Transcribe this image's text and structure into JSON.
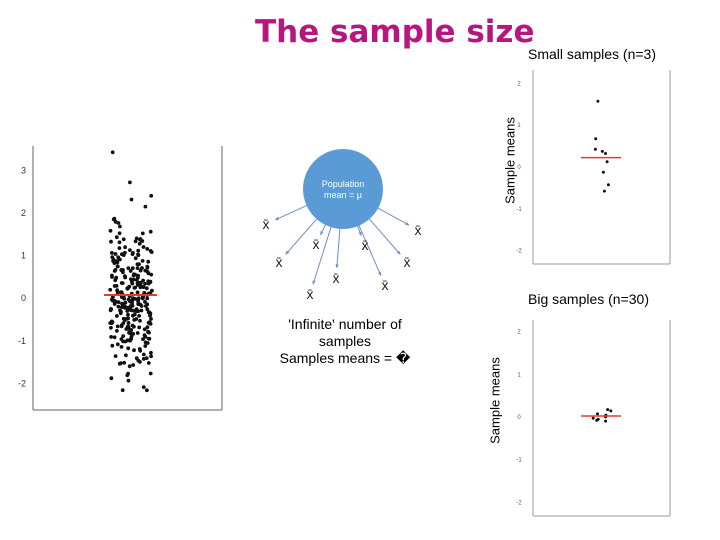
{
  "slide": {
    "title": "The sample size",
    "small_caption": "Small samples (n=3)",
    "big_caption": "Big samples (n=30)",
    "ylabel_small": "Sample means",
    "ylabel_big": "Sample means",
    "infinite_line1": "'Infinite' number of",
    "infinite_line2": "samples",
    "infinite_line3": "Samples means = �"
  },
  "diagram": {
    "population_line1": "Population",
    "population_line2": "mean = μ",
    "sample_symbol": "x̄",
    "accent_circle": "#5b9bd5",
    "mean_line_color": "#e03c31"
  },
  "chart_data": [
    {
      "type": "scatter",
      "title": "",
      "xlabel": "",
      "ylabel": "",
      "yticks": [
        "3",
        "2",
        "1",
        "0",
        "-1",
        "-2"
      ],
      "ylim": [
        -2.6,
        3.5
      ],
      "mean": 0,
      "n_points": 300
    },
    {
      "type": "scatter",
      "title": "Small samples (n=3)",
      "ylabel": "Sample means",
      "yticks": [
        "2",
        "1",
        "0",
        "-1",
        "-2"
      ],
      "ylim": [
        -2.2,
        2.2
      ],
      "mean": 0.2,
      "y": [
        1.55,
        0.65,
        0.4,
        0.3,
        0.35,
        0.1,
        -0.15,
        -0.45,
        -0.6
      ]
    },
    {
      "type": "scatter",
      "title": "Big samples (n=30)",
      "ylabel": "Sample means",
      "yticks": [
        "2",
        "1",
        "0",
        "-1",
        "-2"
      ],
      "ylim": [
        -2.2,
        2.2
      ],
      "mean": 0,
      "y": [
        0.15,
        0.12,
        0.05,
        0.02,
        -0.02,
        -0.05,
        -0.08,
        -0.1,
        -0.12
      ]
    }
  ]
}
